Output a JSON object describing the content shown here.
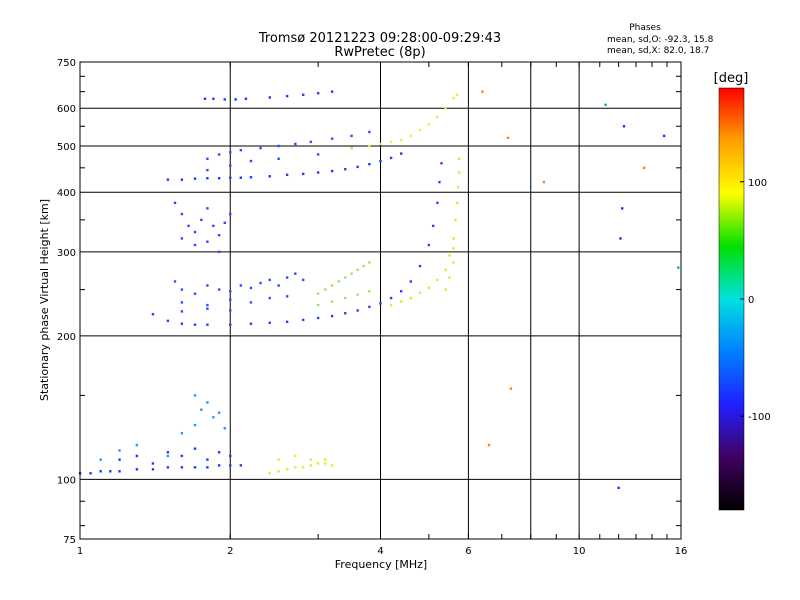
{
  "chart_data": {
    "type": "scatter",
    "title": "Tromsø 20121223 09:28:00-09:29:43",
    "subtitle": "RwPretec (8p)",
    "xlabel": "Frequency [MHz]",
    "ylabel": "Stationary phase Virtual Height [km]",
    "x_scale": "log",
    "y_scale": "log",
    "xlim": [
      1,
      16
    ],
    "ylim": [
      75,
      750
    ],
    "x_ticks": [
      1,
      2,
      4,
      6,
      10,
      16
    ],
    "x_gridlines": [
      1,
      2,
      4,
      6,
      8,
      10,
      16
    ],
    "y_ticks": [
      75,
      100,
      200,
      300,
      400,
      500,
      600,
      750
    ],
    "grid": true,
    "phases_header": "Phases",
    "phases_O": "mean, sd,O: -92.3, 15.8",
    "phases_X": "mean, sd,X:  82.0, 18.7",
    "colorbar": {
      "label": "[deg]",
      "range": [
        -180,
        180
      ],
      "ticks": [
        100,
        0,
        -100
      ],
      "colors": [
        "#ff0000",
        "#ffa000",
        "#ffff00",
        "#00e000",
        "#00e0e0",
        "#0080ff",
        "#2020ff",
        "#400060",
        "#000000"
      ]
    },
    "series": [
      {
        "color": "#1a3dff",
        "points": [
          [
            1.78,
            628
          ],
          [
            1.85,
            628
          ],
          [
            1.95,
            626
          ],
          [
            2.05,
            626
          ],
          [
            2.15,
            628
          ],
          [
            2.4,
            632
          ],
          [
            2.6,
            636
          ],
          [
            2.8,
            640
          ],
          [
            3.0,
            645
          ],
          [
            3.2,
            650
          ]
        ]
      },
      {
        "color": "#1a3dff",
        "points": [
          [
            1.5,
            425
          ],
          [
            1.6,
            425
          ],
          [
            1.7,
            427
          ],
          [
            1.8,
            428
          ],
          [
            1.9,
            428
          ],
          [
            2.0,
            429
          ],
          [
            2.1,
            429
          ],
          [
            2.2,
            430
          ],
          [
            2.4,
            432
          ],
          [
            2.6,
            435
          ],
          [
            2.8,
            437
          ],
          [
            3.0,
            440
          ],
          [
            3.2,
            443
          ],
          [
            3.4,
            447
          ],
          [
            3.6,
            452
          ],
          [
            3.8,
            458
          ],
          [
            4.0,
            465
          ],
          [
            4.2,
            472
          ],
          [
            4.4,
            482
          ]
        ]
      },
      {
        "color": "#2a4dff",
        "points": [
          [
            1.8,
            470
          ],
          [
            1.9,
            480
          ],
          [
            2.0,
            485
          ],
          [
            2.1,
            490
          ],
          [
            2.3,
            495
          ],
          [
            2.5,
            500
          ],
          [
            2.7,
            505
          ],
          [
            2.9,
            510
          ],
          [
            3.2,
            518
          ],
          [
            3.5,
            525
          ],
          [
            3.8,
            535
          ],
          [
            1.8,
            445
          ],
          [
            2.0,
            455
          ],
          [
            2.2,
            465
          ],
          [
            2.5,
            470
          ],
          [
            3.0,
            480
          ],
          [
            3.5,
            495
          ]
        ]
      },
      {
        "color": "#4040ff",
        "points": [
          [
            1.55,
            380
          ],
          [
            1.6,
            360
          ],
          [
            1.65,
            340
          ],
          [
            1.7,
            330
          ],
          [
            1.75,
            350
          ],
          [
            1.8,
            370
          ],
          [
            1.85,
            340
          ],
          [
            1.9,
            325
          ],
          [
            1.95,
            345
          ],
          [
            2.0,
            360
          ],
          [
            1.6,
            320
          ],
          [
            1.7,
            310
          ],
          [
            1.8,
            315
          ],
          [
            1.9,
            300
          ]
        ]
      },
      {
        "color": "#2a40ff",
        "points": [
          [
            1.4,
            222
          ],
          [
            1.5,
            215
          ],
          [
            1.6,
            212
          ],
          [
            1.7,
            211
          ],
          [
            1.8,
            211
          ],
          [
            2.0,
            211
          ],
          [
            2.2,
            212
          ],
          [
            2.4,
            213
          ],
          [
            2.6,
            214
          ],
          [
            2.8,
            216
          ],
          [
            3.0,
            218
          ],
          [
            3.2,
            220
          ],
          [
            3.4,
            223
          ],
          [
            3.6,
            226
          ],
          [
            3.8,
            230
          ],
          [
            4.0,
            234
          ],
          [
            4.2,
            240
          ],
          [
            4.4,
            248
          ],
          [
            4.6,
            260
          ],
          [
            4.8,
            280
          ],
          [
            5.0,
            310
          ],
          [
            5.1,
            340
          ],
          [
            5.2,
            380
          ],
          [
            5.25,
            420
          ],
          [
            5.3,
            460
          ]
        ]
      },
      {
        "color": "#2a4dff",
        "points": [
          [
            1.55,
            260
          ],
          [
            1.6,
            250
          ],
          [
            1.7,
            245
          ],
          [
            1.8,
            255
          ],
          [
            1.9,
            250
          ],
          [
            2.0,
            248
          ],
          [
            2.1,
            255
          ],
          [
            2.2,
            252
          ],
          [
            2.3,
            258
          ],
          [
            2.4,
            262
          ],
          [
            2.5,
            255
          ],
          [
            2.6,
            265
          ],
          [
            2.7,
            270
          ],
          [
            2.8,
            262
          ],
          [
            1.6,
            235
          ],
          [
            1.8,
            232
          ],
          [
            2.0,
            238
          ],
          [
            2.2,
            235
          ],
          [
            2.4,
            240
          ],
          [
            2.6,
            242
          ],
          [
            1.6,
            225
          ],
          [
            1.8,
            228
          ],
          [
            2.0,
            226
          ]
        ]
      },
      {
        "color": "#a0e060",
        "points": [
          [
            3.0,
            245
          ],
          [
            3.1,
            250
          ],
          [
            3.2,
            255
          ],
          [
            3.3,
            260
          ],
          [
            3.4,
            265
          ],
          [
            3.5,
            270
          ],
          [
            3.6,
            275
          ],
          [
            3.7,
            280
          ],
          [
            3.8,
            285
          ],
          [
            3.0,
            232
          ],
          [
            3.2,
            236
          ],
          [
            3.4,
            240
          ],
          [
            3.6,
            244
          ],
          [
            3.8,
            248
          ]
        ]
      },
      {
        "color": "#d0f030",
        "points": [
          [
            4.2,
            232
          ],
          [
            4.4,
            236
          ],
          [
            4.6,
            240
          ],
          [
            4.8,
            246
          ],
          [
            5.0,
            252
          ],
          [
            5.2,
            262
          ],
          [
            5.4,
            275
          ],
          [
            5.5,
            295
          ],
          [
            5.6,
            320
          ],
          [
            5.65,
            350
          ],
          [
            5.7,
            380
          ],
          [
            5.72,
            410
          ],
          [
            5.75,
            440
          ],
          [
            5.75,
            470
          ],
          [
            5.4,
            250
          ],
          [
            5.5,
            265
          ],
          [
            5.6,
            285
          ],
          [
            5.6,
            305
          ]
        ]
      },
      {
        "color": "#e0f040",
        "points": [
          [
            3.5,
            495
          ],
          [
            3.8,
            500
          ],
          [
            4.0,
            505
          ],
          [
            4.2,
            510
          ],
          [
            4.4,
            515
          ],
          [
            4.6,
            525
          ],
          [
            4.8,
            540
          ],
          [
            5.0,
            555
          ],
          [
            5.2,
            575
          ],
          [
            5.4,
            600
          ],
          [
            5.6,
            630
          ],
          [
            5.7,
            640
          ]
        ]
      },
      {
        "color": "#1a3dff",
        "points": [
          [
            1.0,
            103
          ],
          [
            1.05,
            103
          ],
          [
            1.1,
            104
          ],
          [
            1.15,
            104
          ],
          [
            1.2,
            104
          ],
          [
            1.3,
            105
          ],
          [
            1.4,
            105
          ],
          [
            1.5,
            106
          ],
          [
            1.6,
            106
          ],
          [
            1.7,
            106
          ],
          [
            1.8,
            106
          ],
          [
            1.9,
            107
          ],
          [
            2.0,
            107
          ],
          [
            2.1,
            107
          ],
          [
            1.2,
            110
          ],
          [
            1.3,
            112
          ],
          [
            1.4,
            108
          ],
          [
            1.5,
            114
          ],
          [
            1.6,
            112
          ],
          [
            1.7,
            116
          ],
          [
            1.8,
            110
          ],
          [
            1.9,
            114
          ],
          [
            2.0,
            112
          ]
        ]
      },
      {
        "color": "#3090ff",
        "points": [
          [
            1.1,
            110
          ],
          [
            1.2,
            115
          ],
          [
            1.3,
            118
          ],
          [
            1.5,
            112
          ],
          [
            1.6,
            125
          ],
          [
            1.7,
            130
          ],
          [
            1.75,
            140
          ],
          [
            1.8,
            145
          ],
          [
            1.85,
            135
          ],
          [
            1.9,
            138
          ],
          [
            1.95,
            128
          ],
          [
            1.7,
            150
          ]
        ]
      },
      {
        "color": "#d8f030",
        "points": [
          [
            2.4,
            103
          ],
          [
            2.5,
            104
          ],
          [
            2.6,
            105
          ],
          [
            2.7,
            106
          ],
          [
            2.8,
            106
          ],
          [
            2.9,
            107
          ],
          [
            3.0,
            108
          ],
          [
            3.1,
            108
          ],
          [
            3.2,
            107
          ],
          [
            2.5,
            110
          ],
          [
            2.7,
            112
          ],
          [
            2.9,
            110
          ],
          [
            3.1,
            110
          ]
        ]
      },
      {
        "color": "#ff8020",
        "points": [
          [
            7.2,
            520
          ],
          [
            8.5,
            420
          ],
          [
            6.4,
            650
          ],
          [
            7.3,
            155
          ],
          [
            13.5,
            450
          ],
          [
            6.6,
            118
          ]
        ]
      },
      {
        "color": "#00c060",
        "points": [
          [
            11.3,
            610
          ],
          [
            15.8,
            278
          ]
        ]
      },
      {
        "color": "#2030ff",
        "points": [
          [
            12.3,
            550
          ],
          [
            12.2,
            370
          ],
          [
            12.1,
            320
          ],
          [
            12.0,
            96
          ],
          [
            14.8,
            525
          ]
        ]
      }
    ]
  }
}
